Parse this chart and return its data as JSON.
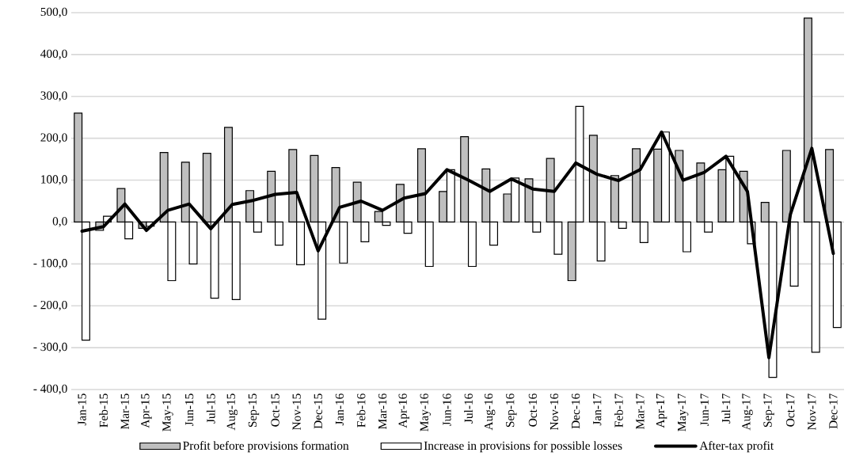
{
  "chart_data": {
    "type": "bar",
    "categories": [
      "Jan-15",
      "Feb-15",
      "Mar-15",
      "Apr-15",
      "May-15",
      "Jun-15",
      "Jul-15",
      "Aug-15",
      "Sep-15",
      "Oct-15",
      "Nov-15",
      "Dec-15",
      "Jan-16",
      "Feb-16",
      "Mar-16",
      "Apr-16",
      "May-16",
      "Jun-16",
      "Jul-16",
      "Aug-16",
      "Sep-16",
      "Oct-16",
      "Nov-16",
      "Dec-16",
      "Jan-17",
      "Feb-17",
      "Mar-17",
      "Apr-17",
      "May-17",
      "Jun-17",
      "Jul-17",
      "Aug-17",
      "Sep-17",
      "Oct-17",
      "Nov-17",
      "Dec-17"
    ],
    "series": [
      {
        "name": "Profit before provisions formation",
        "color": "#bfbfbf",
        "values": [
          260,
          -20,
          80,
          -15,
          166,
          143,
          164,
          226,
          75,
          121,
          173,
          159,
          130,
          95,
          25,
          90,
          175,
          73,
          204,
          127,
          67,
          103,
          152,
          -140,
          207,
          111,
          175,
          174,
          171,
          141,
          125,
          121,
          47,
          171,
          487,
          173
        ]
      },
      {
        "name": "Increase in provisions for possible losses",
        "color": "#ffffff",
        "values": [
          -282,
          14,
          -40,
          -10,
          -140,
          -100,
          -182,
          -185,
          -24,
          -55,
          -102,
          -232,
          -98,
          -47,
          -8,
          -27,
          -106,
          125,
          -106,
          -55,
          105,
          -24,
          -77,
          276,
          -93,
          -15,
          -49,
          215,
          -71,
          -24,
          157,
          -52,
          -371,
          -153,
          -311,
          -252
        ]
      },
      {
        "name": "After-tax profit",
        "color": "#000000",
        "type": "line",
        "values": [
          -22,
          -11,
          43,
          -20,
          28,
          43,
          -16,
          42,
          52,
          66,
          71,
          -69,
          35,
          50,
          28,
          57,
          68,
          125,
          100,
          73,
          103,
          79,
          73,
          141,
          114,
          99,
          125,
          215,
          100,
          119,
          157,
          73,
          -324,
          18,
          176,
          -75
        ]
      }
    ],
    "ylim": [
      -400,
      500
    ],
    "yticks": [
      {
        "value": -400,
        "label": "- 400,0"
      },
      {
        "value": -300,
        "label": "- 300,0"
      },
      {
        "value": -200,
        "label": "- 200,0"
      },
      {
        "value": -100,
        "label": "- 100,0"
      },
      {
        "value": 0,
        "label": "0,0"
      },
      {
        "value": 100,
        "label": "100,0"
      },
      {
        "value": 200,
        "label": "200,0"
      },
      {
        "value": 300,
        "label": "300,0"
      },
      {
        "value": 400,
        "label": "400,0"
      },
      {
        "value": 500,
        "label": "500,0"
      }
    ],
    "grid": "y",
    "legend": "bottom"
  }
}
